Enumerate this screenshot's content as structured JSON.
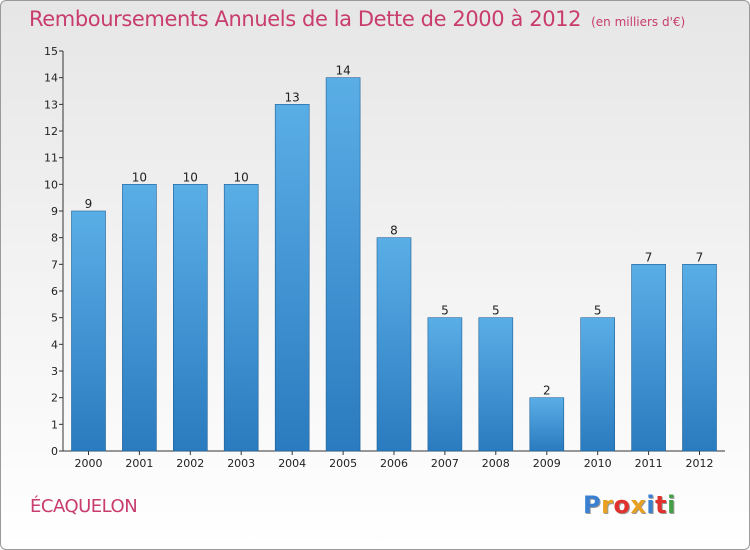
{
  "header": {
    "title": "Remboursements Annuels de la Dette de 2000 à 2012",
    "subtitle": "(en milliers d'€)"
  },
  "commune": "ÉCAQUELON",
  "logo": {
    "letters": [
      {
        "ch": "P",
        "color": "#3a7fd0"
      },
      {
        "ch": "r",
        "color": "#e8a020"
      },
      {
        "ch": "o",
        "color": "#e0312c"
      },
      {
        "ch": "x",
        "color": "#e8a020"
      },
      {
        "ch": "i",
        "color": "#3a7fd0"
      },
      {
        "ch": "t",
        "color": "#e0312c"
      },
      {
        "ch": "i",
        "color": "#43a047"
      }
    ]
  },
  "chart_data": {
    "type": "bar",
    "title": "Remboursements Annuels de la Dette de 2000 à 2012",
    "categories": [
      "2000",
      "2001",
      "2002",
      "2003",
      "2004",
      "2005",
      "2006",
      "2007",
      "2008",
      "2009",
      "2010",
      "2011",
      "2012"
    ],
    "values": [
      9,
      10,
      10,
      10,
      13,
      14,
      8,
      5,
      5,
      2,
      5,
      7,
      7
    ],
    "ylim": [
      0,
      15
    ],
    "yticks": [
      0,
      1,
      2,
      3,
      4,
      5,
      6,
      7,
      8,
      9,
      10,
      11,
      12,
      13,
      14,
      15
    ],
    "grid": false,
    "bar_color_top": "#5aaee6",
    "bar_color_bottom": "#2a7bbf"
  }
}
